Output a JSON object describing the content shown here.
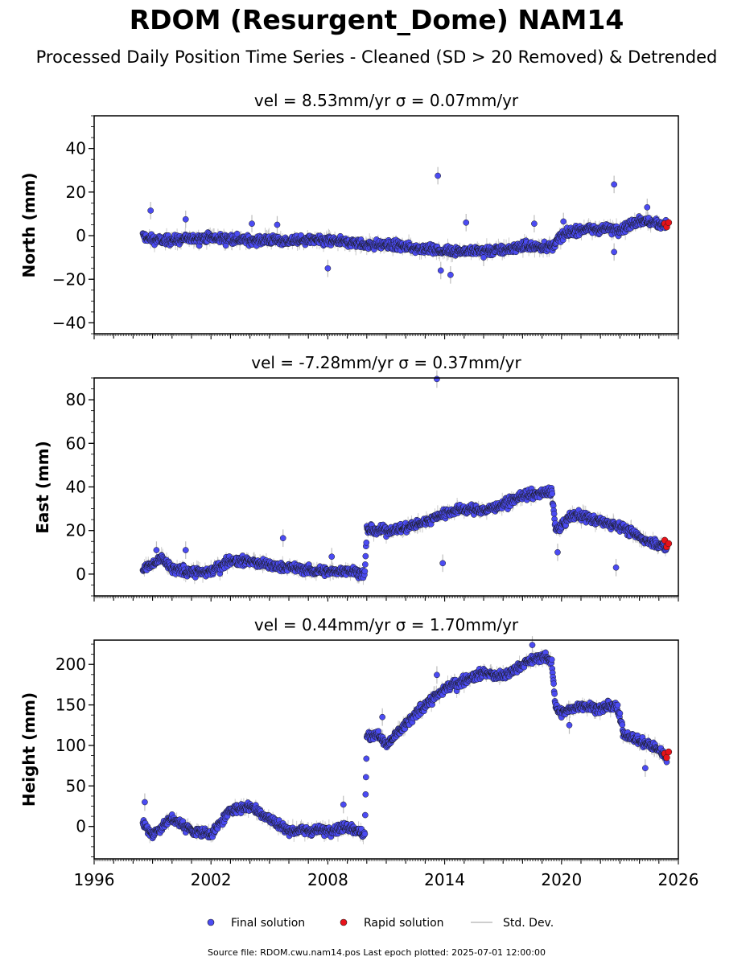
{
  "figure": {
    "title": "RDOM (Resurgent_Dome) NAM14",
    "subtitle": "Processed Daily Position Time Series - Cleaned (SD > 20 Removed) & Detrended",
    "footer": "Source file: RDOM.cwu.nam14.pos  Last epoch plotted: 2025-07-01 12:00:00"
  },
  "colors": {
    "final": "#4b4bf2",
    "rapid": "#e8121a",
    "stddev": "#bdbdbd",
    "marker_edge": "#1a1a1a"
  },
  "legend": {
    "placement": "bottom-center",
    "items": [
      {
        "label": "Final solution",
        "color": "#4b4bf2"
      },
      {
        "label": "Rapid solution",
        "color": "#e8121a"
      },
      {
        "label": "Std. Dev.",
        "color": "#bdbdbd"
      }
    ]
  },
  "chart_data": [
    {
      "type": "scatter",
      "component": "north",
      "title": "vel = 8.53mm/yr   σ = 0.07mm/yr",
      "ylabel": "North (mm)",
      "xlim": [
        1996,
        2026
      ],
      "ylim": [
        -45,
        55
      ],
      "yticks": [
        -40,
        -20,
        0,
        20,
        40
      ],
      "ytick_labels": [
        "−40",
        "−20",
        "0",
        "20",
        "40"
      ],
      "grid": false,
      "final_solution": {
        "trend": [
          [
            1998.5,
            0
          ],
          [
            1999.0,
            -2
          ],
          [
            2000.0,
            -2
          ],
          [
            2001.0,
            -1.5
          ],
          [
            2002.0,
            -1
          ],
          [
            2002.9,
            -1.5
          ],
          [
            2004.0,
            -2
          ],
          [
            2005.0,
            -2
          ],
          [
            2006.0,
            -2.5
          ],
          [
            2007.0,
            -2
          ],
          [
            2008.0,
            -2.5
          ],
          [
            2009.0,
            -3
          ],
          [
            2010.0,
            -4
          ],
          [
            2011.0,
            -4
          ],
          [
            2012.0,
            -5
          ],
          [
            2013.0,
            -6
          ],
          [
            2014.0,
            -7
          ],
          [
            2015.0,
            -7
          ],
          [
            2016.0,
            -7
          ],
          [
            2017.0,
            -6.5
          ],
          [
            2018.0,
            -5
          ],
          [
            2019.0,
            -5
          ],
          [
            2019.5,
            -5
          ],
          [
            2020.0,
            0
          ],
          [
            2021.0,
            3
          ],
          [
            2022.0,
            3
          ],
          [
            2023.0,
            3
          ],
          [
            2024.0,
            7
          ],
          [
            2025.4,
            5
          ]
        ],
        "outliers": [
          [
            1998.9,
            11.5
          ],
          [
            2000.7,
            7.5
          ],
          [
            2004.1,
            5.5
          ],
          [
            2005.4,
            5
          ],
          [
            2008.0,
            -15
          ],
          [
            2013.65,
            27.5
          ],
          [
            2013.8,
            -16
          ],
          [
            2014.3,
            -18
          ],
          [
            2015.1,
            6
          ],
          [
            2016.0,
            -10
          ],
          [
            2018.6,
            5.5
          ],
          [
            2020.1,
            6.5
          ],
          [
            2022.7,
            23.5
          ],
          [
            2022.7,
            -7.5
          ],
          [
            2024.4,
            13
          ]
        ]
      },
      "rapid_solution": {
        "x_range": [
          2025.3,
          2025.5
        ],
        "y": [
          5.5,
          4,
          6
        ]
      }
    },
    {
      "type": "scatter",
      "component": "east",
      "title": "vel = -7.28mm/yr   σ = 0.37mm/yr",
      "ylabel": "East (mm)",
      "xlim": [
        1996,
        2026
      ],
      "ylim": [
        -10,
        90
      ],
      "yticks": [
        0,
        20,
        40,
        60,
        80
      ],
      "ytick_labels": [
        "0",
        "20",
        "40",
        "60",
        "80"
      ],
      "grid": false,
      "final_solution": {
        "trend": [
          [
            1998.5,
            2
          ],
          [
            1999.5,
            7
          ],
          [
            2000.0,
            2
          ],
          [
            2001.0,
            1
          ],
          [
            2002.0,
            1
          ],
          [
            2002.9,
            6
          ],
          [
            2004.0,
            6
          ],
          [
            2005.0,
            4
          ],
          [
            2006.0,
            3
          ],
          [
            2007.0,
            2
          ],
          [
            2008.0,
            1
          ],
          [
            2009.0,
            2
          ],
          [
            2009.9,
            0
          ],
          [
            2010.0,
            20
          ],
          [
            2011.0,
            20
          ],
          [
            2012.0,
            21
          ],
          [
            2013.0,
            24
          ],
          [
            2014.0,
            28
          ],
          [
            2015.0,
            30
          ],
          [
            2016.0,
            29
          ],
          [
            2017.0,
            32
          ],
          [
            2018.0,
            36
          ],
          [
            2019.0,
            37
          ],
          [
            2019.5,
            38
          ],
          [
            2019.7,
            20
          ],
          [
            2020.0,
            22
          ],
          [
            2020.5,
            27
          ],
          [
            2021.0,
            27
          ],
          [
            2022.0,
            24
          ],
          [
            2023.0,
            22
          ],
          [
            2024.0,
            17
          ],
          [
            2025.4,
            12
          ]
        ],
        "outliers": [
          [
            1999.2,
            11
          ],
          [
            2000.7,
            11
          ],
          [
            2005.7,
            16.5
          ],
          [
            2008.2,
            8
          ],
          [
            2013.6,
            89.5
          ],
          [
            2013.9,
            5
          ],
          [
            2019.8,
            10
          ],
          [
            2022.8,
            3
          ]
        ]
      },
      "rapid_solution": {
        "x_range": [
          2025.3,
          2025.5
        ],
        "y": [
          15.5,
          12.5,
          14
        ]
      }
    },
    {
      "type": "scatter",
      "component": "height",
      "title": "vel = 0.44mm/yr   σ = 1.70mm/yr",
      "ylabel": "Height (mm)",
      "xlim": [
        1996,
        2026
      ],
      "ylim": [
        -40,
        230
      ],
      "yticks": [
        0,
        50,
        100,
        150,
        200
      ],
      "ytick_labels": [
        "0",
        "50",
        "100",
        "150",
        "200"
      ],
      "xticks": [
        1996,
        2002,
        2008,
        2014,
        2020,
        2026
      ],
      "xtick_labels": [
        "1996",
        "2002",
        "2008",
        "2014",
        "2020",
        "2026"
      ],
      "grid": false,
      "final_solution": {
        "trend": [
          [
            1998.5,
            5
          ],
          [
            1999.0,
            -10
          ],
          [
            2000.0,
            10
          ],
          [
            2001.0,
            -5
          ],
          [
            2002.0,
            -10
          ],
          [
            2002.5,
            5
          ],
          [
            2003.0,
            20
          ],
          [
            2004.0,
            25
          ],
          [
            2005.0,
            10
          ],
          [
            2006.0,
            -5
          ],
          [
            2007.0,
            -5
          ],
          [
            2008.0,
            -5
          ],
          [
            2009.0,
            0
          ],
          [
            2009.9,
            -10
          ],
          [
            2010.0,
            110
          ],
          [
            2010.5,
            115
          ],
          [
            2011.0,
            100
          ],
          [
            2012.0,
            125
          ],
          [
            2013.0,
            150
          ],
          [
            2014.0,
            170
          ],
          [
            2015.0,
            180
          ],
          [
            2016.0,
            190
          ],
          [
            2017.0,
            185
          ],
          [
            2018.0,
            200
          ],
          [
            2019.0,
            210
          ],
          [
            2019.5,
            205
          ],
          [
            2019.7,
            145
          ],
          [
            2020.0,
            140
          ],
          [
            2021.0,
            150
          ],
          [
            2022.0,
            145
          ],
          [
            2022.8,
            150
          ],
          [
            2023.2,
            115
          ],
          [
            2024.0,
            105
          ],
          [
            2025.0,
            95
          ],
          [
            2025.4,
            85
          ]
        ],
        "outliers": [
          [
            1998.6,
            30
          ],
          [
            2008.8,
            27
          ],
          [
            2010.8,
            135
          ],
          [
            2013.6,
            187
          ],
          [
            2018.5,
            224
          ],
          [
            2020.4,
            125
          ],
          [
            2024.3,
            72
          ]
        ]
      },
      "rapid_solution": {
        "x_range": [
          2025.3,
          2025.5
        ],
        "y": [
          90,
          85,
          92
        ]
      }
    }
  ]
}
